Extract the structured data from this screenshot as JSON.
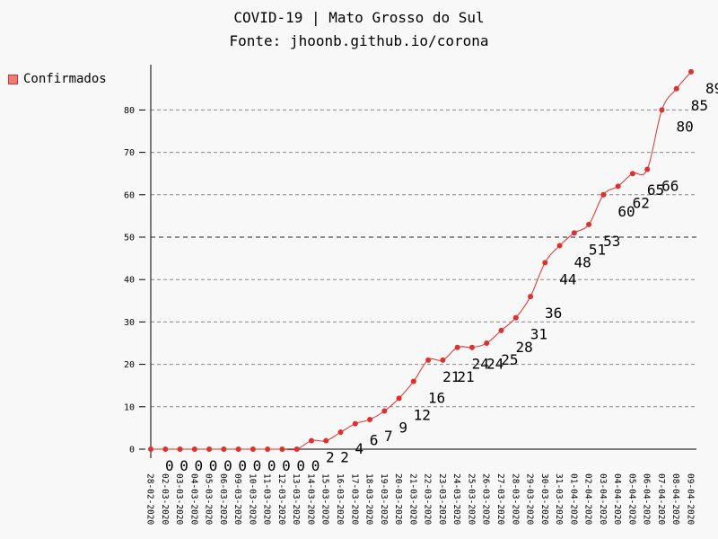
{
  "chart_data": {
    "type": "line",
    "title": "COVID-19 | Mato Grosso do Sul",
    "subtitle": "Fonte: jhoonb.github.io/corona",
    "xlabel": "",
    "ylabel": "",
    "ylim": [
      0,
      90
    ],
    "yticks": [
      0,
      10,
      20,
      30,
      40,
      50,
      60,
      70,
      80
    ],
    "grid": true,
    "legend_position": "top-left",
    "categories": [
      "28-02-2020",
      "02-03-2020",
      "03-03-2020",
      "04-03-2020",
      "05-03-2020",
      "06-03-2020",
      "09-03-2020",
      "10-03-2020",
      "11-03-2020",
      "12-03-2020",
      "13-03-2020",
      "14-03-2020",
      "15-03-2020",
      "16-03-2020",
      "17-03-2020",
      "18-03-2020",
      "19-03-2020",
      "20-03-2020",
      "21-03-2020",
      "22-03-2020",
      "23-03-2020",
      "24-03-2020",
      "25-03-2020",
      "26-03-2020",
      "27-03-2020",
      "28-03-2020",
      "29-03-2020",
      "30-03-2020",
      "31-03-2020",
      "01-04-2020",
      "02-04-2020",
      "03-04-2020",
      "04-04-2020",
      "05-04-2020",
      "06-04-2020",
      "07-04-2020",
      "08-04-2020",
      "09-04-2020"
    ],
    "series": [
      {
        "name": "Confirmados",
        "color": "#e0302c",
        "fill_color": "#f47a77",
        "values": [
          0,
          0,
          0,
          0,
          0,
          0,
          0,
          0,
          0,
          0,
          0,
          2,
          2,
          4,
          6,
          7,
          9,
          12,
          16,
          21,
          21,
          24,
          24,
          25,
          28,
          31,
          36,
          44,
          48,
          51,
          53,
          60,
          62,
          65,
          66,
          80,
          85,
          89
        ]
      }
    ]
  }
}
